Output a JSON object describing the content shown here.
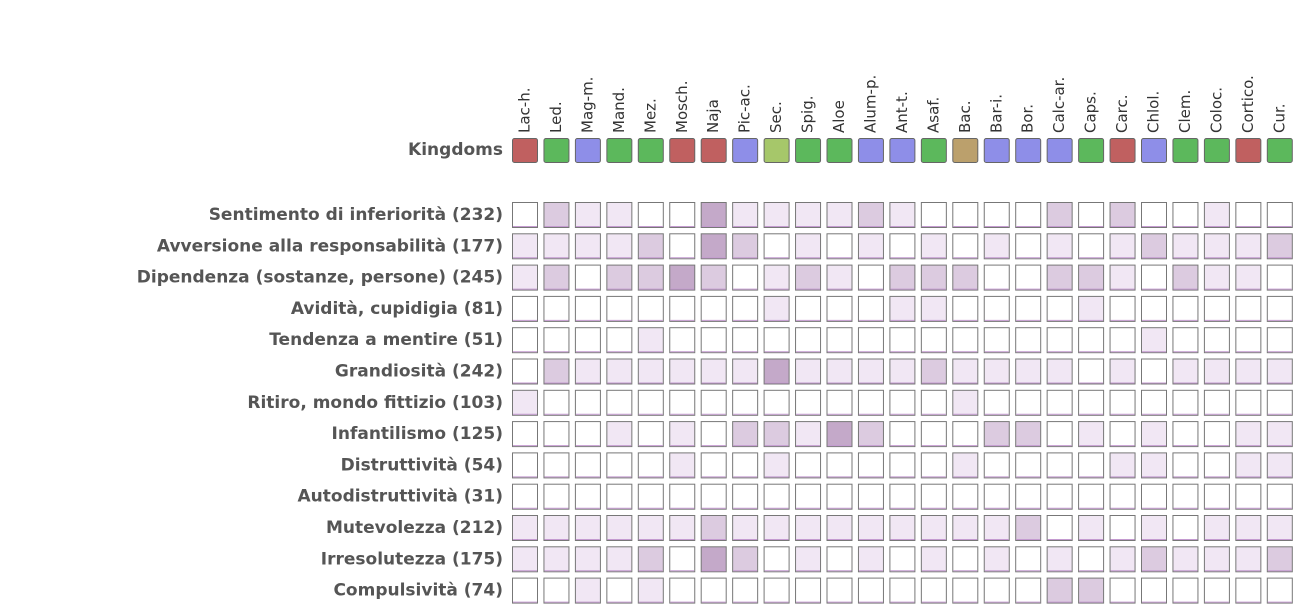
{
  "kingdoms_label": "Kingdoms",
  "columns": [
    "Lac-h.",
    "Led.",
    "Mag-m.",
    "Mand.",
    "Mez.",
    "Mosch.",
    "Naja",
    "Pic-ac.",
    "Sec.",
    "Spig.",
    "Aloe",
    "Alum-p.",
    "Ant-t.",
    "Asaf.",
    "Bac.",
    "Bar-i.",
    "Bor.",
    "Calc-ar.",
    "Caps.",
    "Carc.",
    "Chlol.",
    "Clem.",
    "Coloc.",
    "Cortico.",
    "Cur."
  ],
  "kingdom_colors": [
    "#c06060",
    "#5cb85c",
    "#8e8ee8",
    "#5cb85c",
    "#5cb85c",
    "#c06060",
    "#c06060",
    "#8e8ee8",
    "#a6c76a",
    "#5cb85c",
    "#5cb85c",
    "#8e8ee8",
    "#8e8ee8",
    "#5cb85c",
    "#bba06c",
    "#8e8ee8",
    "#8e8ee8",
    "#8e8ee8",
    "#5cb85c",
    "#c06060",
    "#8e8ee8",
    "#5cb85c",
    "#5cb85c",
    "#c06060",
    "#5cb85c"
  ],
  "level_colors": [
    "#ffffff",
    "#f1e7f4",
    "#dccbe0",
    "#c4a9c9"
  ],
  "rows": [
    {
      "label": "Sentimento di inferiorità (232)",
      "levels": [
        0,
        2,
        1,
        1,
        0,
        0,
        3,
        1,
        1,
        1,
        1,
        2,
        1,
        0,
        0,
        0,
        0,
        2,
        0,
        2,
        0,
        0,
        1,
        0,
        0
      ]
    },
    {
      "label": "Avversione alla responsabilità (177)",
      "levels": [
        1,
        1,
        1,
        1,
        2,
        0,
        3,
        2,
        0,
        1,
        0,
        1,
        0,
        1,
        0,
        1,
        0,
        1,
        0,
        1,
        2,
        1,
        1,
        1,
        2
      ]
    },
    {
      "label": "Dipendenza (sostanze, persone) (245)",
      "levels": [
        1,
        2,
        0,
        2,
        2,
        3,
        2,
        0,
        1,
        2,
        1,
        0,
        2,
        2,
        2,
        0,
        0,
        2,
        2,
        1,
        0,
        2,
        1,
        1,
        0
      ]
    },
    {
      "label": "Avidità, cupidigia (81)",
      "levels": [
        0,
        0,
        0,
        0,
        0,
        0,
        0,
        0,
        1,
        0,
        0,
        0,
        1,
        1,
        0,
        0,
        0,
        0,
        1,
        0,
        0,
        0,
        0,
        0,
        0
      ]
    },
    {
      "label": "Tendenza a mentire (51)",
      "levels": [
        0,
        0,
        0,
        0,
        1,
        0,
        0,
        0,
        0,
        0,
        0,
        0,
        0,
        0,
        0,
        0,
        0,
        0,
        0,
        0,
        1,
        0,
        0,
        0,
        0
      ]
    },
    {
      "label": "Grandiosità (242)",
      "levels": [
        0,
        2,
        1,
        1,
        1,
        1,
        1,
        1,
        3,
        1,
        1,
        1,
        1,
        2,
        1,
        1,
        1,
        1,
        0,
        1,
        0,
        1,
        1,
        1,
        1
      ]
    },
    {
      "label": "Ritiro, mondo fittizio (103)",
      "levels": [
        1,
        0,
        0,
        0,
        0,
        0,
        0,
        0,
        0,
        0,
        0,
        0,
        0,
        0,
        1,
        0,
        0,
        0,
        0,
        0,
        0,
        0,
        0,
        0,
        0
      ]
    },
    {
      "label": "Infantilismo (125)",
      "levels": [
        0,
        0,
        0,
        1,
        0,
        1,
        0,
        2,
        2,
        1,
        3,
        2,
        0,
        0,
        0,
        2,
        2,
        0,
        1,
        0,
        1,
        0,
        0,
        1,
        1
      ]
    },
    {
      "label": "Distruttività (54)",
      "levels": [
        0,
        0,
        0,
        0,
        0,
        1,
        0,
        0,
        1,
        0,
        0,
        0,
        0,
        0,
        1,
        0,
        0,
        0,
        0,
        1,
        1,
        0,
        0,
        1,
        1
      ]
    },
    {
      "label": "Autodistruttività (31)",
      "levels": [
        0,
        0,
        0,
        0,
        0,
        0,
        0,
        0,
        0,
        0,
        0,
        0,
        0,
        0,
        0,
        0,
        0,
        0,
        0,
        0,
        0,
        0,
        0,
        0,
        0
      ]
    },
    {
      "label": "Mutevolezza (212)",
      "levels": [
        1,
        1,
        1,
        1,
        1,
        1,
        2,
        1,
        1,
        1,
        1,
        1,
        1,
        1,
        1,
        1,
        2,
        0,
        1,
        0,
        1,
        0,
        1,
        1,
        1
      ]
    },
    {
      "label": "Irresolutezza (175)",
      "levels": [
        1,
        1,
        1,
        1,
        2,
        0,
        3,
        2,
        0,
        1,
        0,
        1,
        0,
        1,
        0,
        1,
        0,
        1,
        0,
        1,
        2,
        1,
        1,
        1,
        2
      ]
    },
    {
      "label": "Compulsività (74)",
      "levels": [
        0,
        0,
        1,
        0,
        1,
        0,
        0,
        0,
        0,
        0,
        0,
        0,
        0,
        0,
        0,
        0,
        0,
        2,
        2,
        0,
        0,
        0,
        0,
        0,
        0
      ]
    }
  ]
}
